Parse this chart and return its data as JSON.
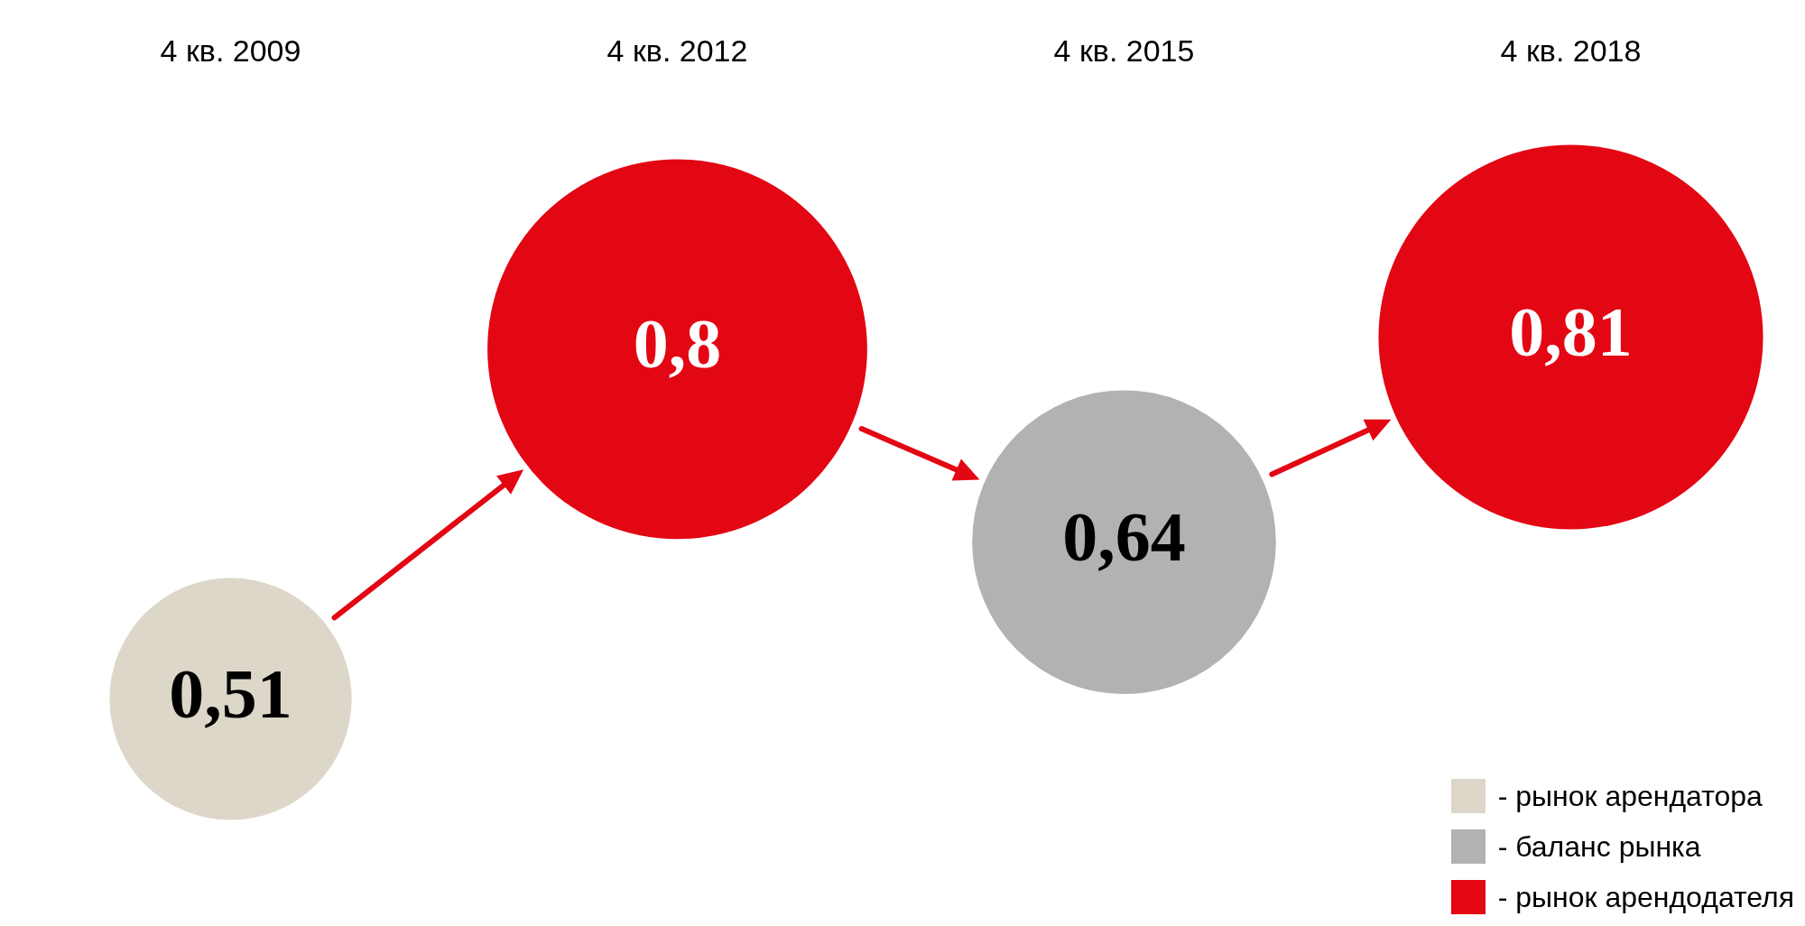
{
  "chart_data": {
    "type": "scatter",
    "categories": [
      "4 кв. 2009",
      "4 кв. 2012",
      "4 кв. 2015",
      "4 кв. 2018"
    ],
    "series": [
      {
        "name": "- рынок арендатора",
        "color": "#dcd7c9",
        "values": [
          0.51,
          null,
          null,
          null
        ],
        "value_labels": [
          "0,51",
          null,
          null,
          null
        ]
      },
      {
        "name": "- баланс рынка",
        "color": "#b1b2b4",
        "values": [
          null,
          null,
          0.64,
          null
        ],
        "value_labels": [
          null,
          null,
          "0,64",
          null
        ]
      },
      {
        "name": "- рынок арендодателя",
        "color": "#e30613",
        "values": [
          null,
          0.8,
          null,
          0.81
        ],
        "value_labels": [
          null,
          "0,8",
          null,
          "0,81"
        ]
      }
    ],
    "legend": "bottom right"
  }
}
